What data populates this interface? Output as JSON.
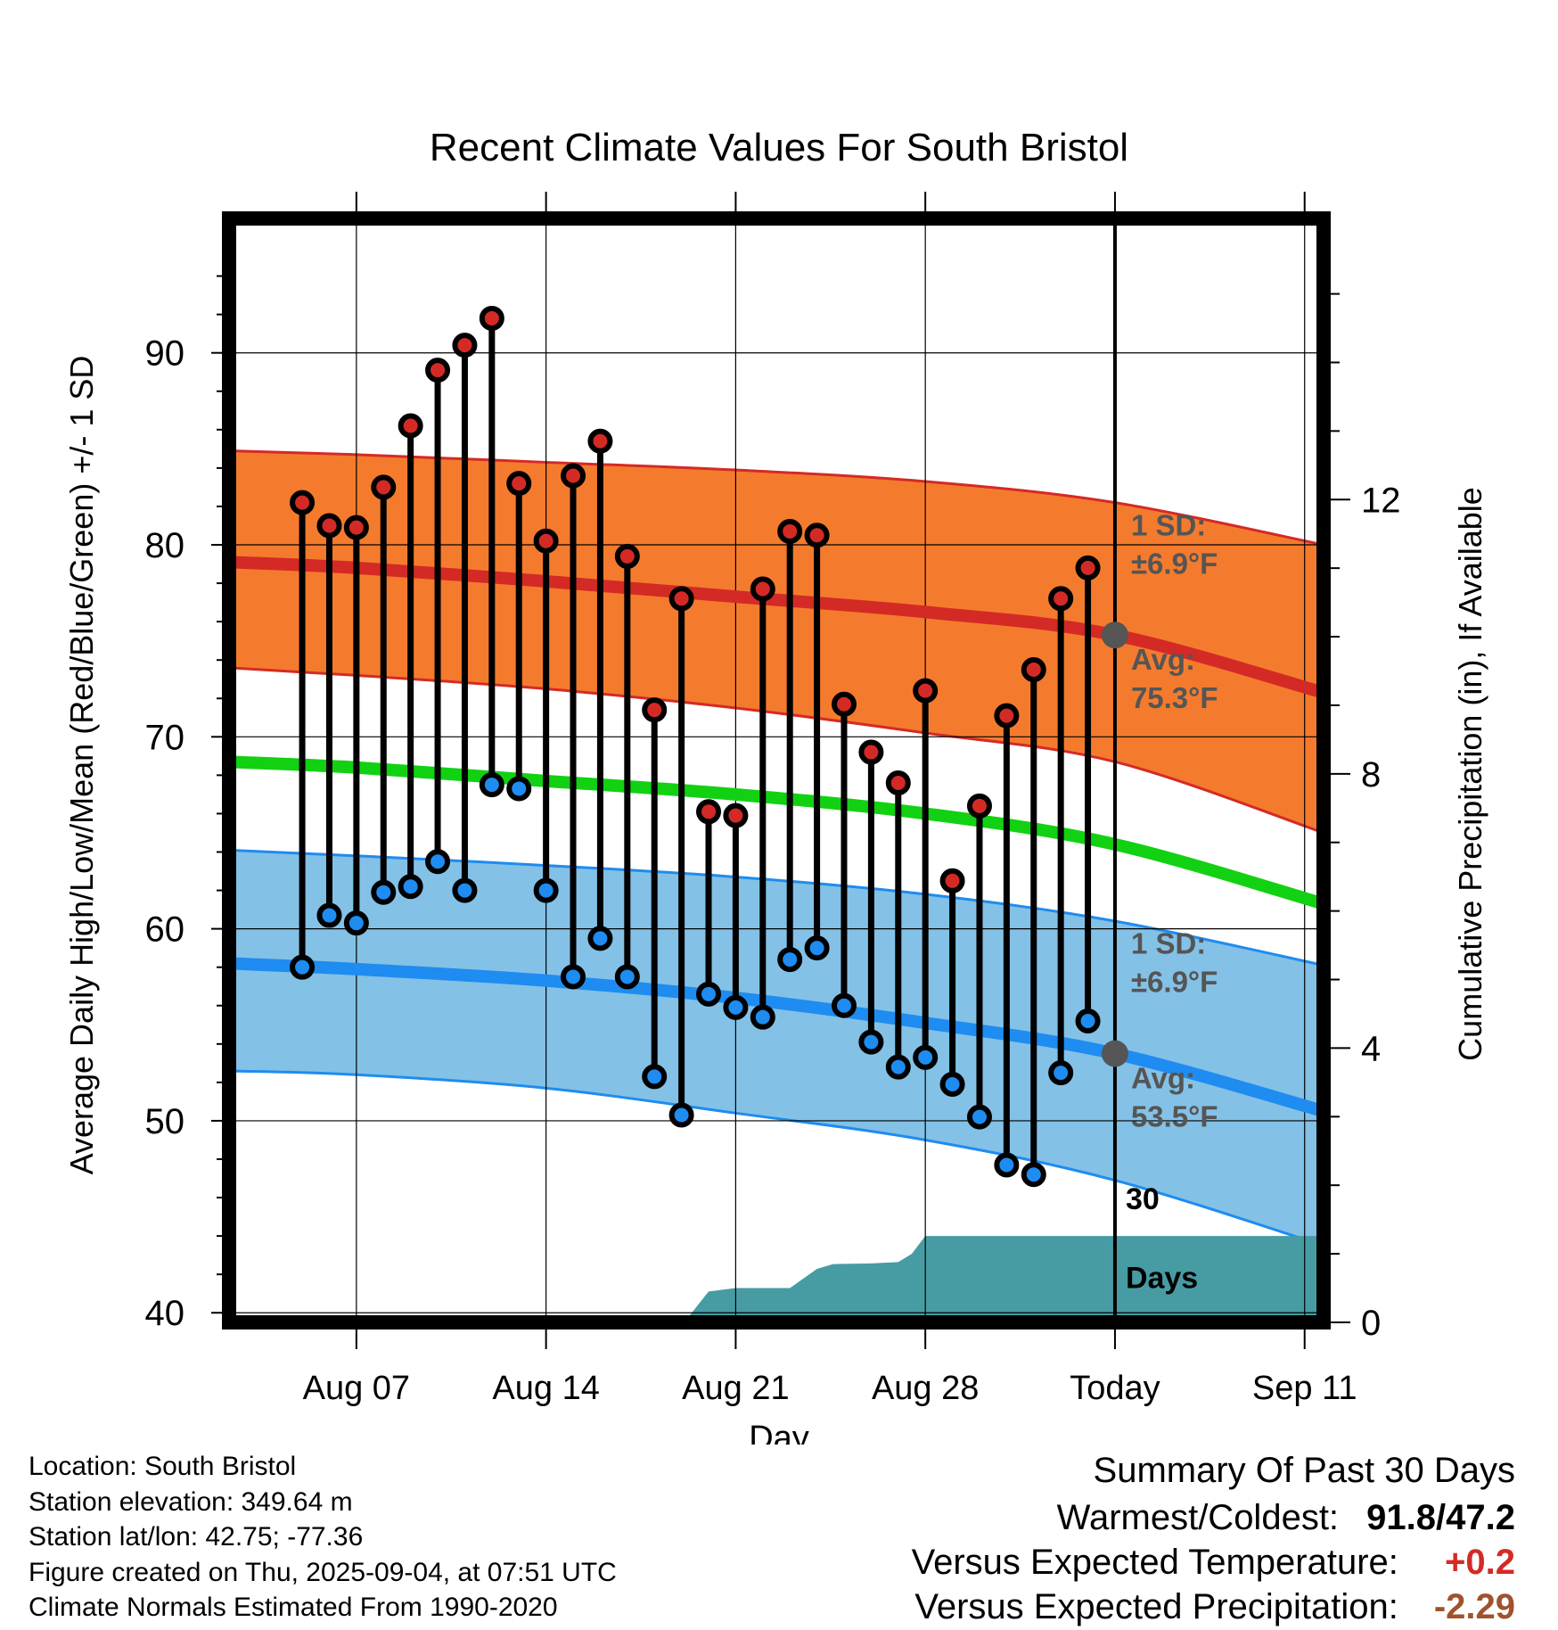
{
  "chart_data": {
    "type": "line",
    "title": "Recent Climate Values For South Bristol",
    "xlabel": "Day",
    "ylabel": "Average Daily High/Low/Mean (Red/Blue/Green) +/- 1 SD",
    "y2label": "Cumulative Precipitation (in), If Available",
    "ylim": [
      39.5,
      97
    ],
    "y2lim": [
      0,
      16.1
    ],
    "xlim": [
      -4.7,
      35.7
    ],
    "x_origin_label": "Aug 07 = day 0",
    "x_ticks": [
      {
        "day": 0,
        "label": "Aug 07"
      },
      {
        "day": 7,
        "label": "Aug 14"
      },
      {
        "day": 14,
        "label": "Aug 21"
      },
      {
        "day": 21,
        "label": "Aug 28"
      },
      {
        "day": 28,
        "label": "Today"
      },
      {
        "day": 35,
        "label": "Sep 11"
      }
    ],
    "y_ticks": [
      40,
      50,
      60,
      70,
      80,
      90
    ],
    "y2_ticks": [
      0,
      4,
      8,
      12
    ],
    "colors": {
      "high_band": "#f47b2d",
      "high_line": "#d42a26",
      "low_band": "#84c1e6",
      "low_line": "#1e8cf0",
      "mean_line": "#12d112",
      "precip": "#479ca3",
      "marker_high": "#d42a26",
      "marker_low": "#1e8cf0",
      "annotation": "#555555"
    },
    "normals": {
      "days": [
        -4.7,
        0,
        7,
        14,
        21,
        28,
        35.7
      ],
      "high_avg": [
        79.1,
        78.8,
        78.1,
        77.3,
        76.5,
        75.3,
        72.3
      ],
      "high_upper": [
        84.9,
        84.7,
        84.3,
        83.9,
        83.3,
        82.2,
        80.0
      ],
      "high_lower": [
        73.6,
        73.2,
        72.5,
        71.5,
        70.2,
        68.7,
        65.0
      ],
      "low_avg": [
        58.2,
        57.9,
        57.3,
        56.4,
        55.1,
        53.5,
        50.5
      ],
      "low_upper": [
        64.1,
        63.8,
        63.3,
        62.7,
        61.8,
        60.4,
        58.1
      ],
      "low_lower": [
        52.6,
        52.4,
        51.7,
        50.4,
        49.0,
        46.9,
        43.5
      ],
      "mean_avg": [
        68.7,
        68.4,
        67.7,
        67.0,
        66.0,
        64.4,
        61.3
      ]
    },
    "observed": {
      "days": [
        -2,
        -1,
        0,
        1,
        2,
        3,
        4,
        5,
        6,
        7,
        8,
        9,
        10,
        11,
        12,
        13,
        14,
        15,
        16,
        17,
        18,
        19,
        20,
        21,
        22,
        23,
        24,
        25,
        26,
        27
      ],
      "high": [
        82.2,
        81.0,
        80.9,
        83.0,
        86.2,
        89.1,
        90.4,
        91.8,
        83.2,
        80.2,
        83.6,
        85.4,
        79.4,
        71.4,
        77.2,
        66.1,
        65.9,
        77.7,
        80.7,
        80.5,
        71.7,
        69.2,
        67.6,
        72.4,
        62.5,
        66.4,
        71.1,
        73.5,
        77.2,
        78.8
      ],
      "low": [
        58.0,
        60.7,
        60.3,
        61.9,
        62.2,
        63.5,
        62.0,
        67.5,
        67.3,
        62.0,
        57.5,
        59.5,
        57.5,
        52.3,
        50.3,
        56.6,
        55.9,
        55.4,
        58.4,
        59.0,
        56.0,
        54.1,
        52.8,
        53.3,
        51.9,
        50.2,
        47.7,
        47.2,
        52.5,
        55.2
      ]
    },
    "precip": {
      "days": [
        12.1,
        13.0,
        14.0,
        16.0,
        17.0,
        17.6,
        19.0,
        20.0,
        20.5,
        21.0,
        35.7
      ],
      "values": [
        0.0,
        0.45,
        0.5,
        0.5,
        0.78,
        0.85,
        0.86,
        0.88,
        1.0,
        1.26,
        1.26
      ]
    },
    "today_markers": {
      "high": 75.3,
      "low": 53.5
    },
    "annotations": {
      "high_sd_1": "1 SD:",
      "high_sd_2": "±6.9°F",
      "high_avg_1": "Avg:",
      "high_avg_2": "75.3°F",
      "low_sd_1": "1 SD:",
      "low_sd_2": "±6.9°F",
      "low_avg_1": "Avg:",
      "low_avg_2": "53.5°F",
      "days_1": "30",
      "days_2": "Days"
    }
  },
  "info": {
    "location": "Location: South Bristol",
    "elevation": "Station elevation: 349.64 m",
    "latlon": "Station lat/lon: 42.75; -77.36",
    "created": "Figure created on Thu, 2025-09-04, at 07:51 UTC",
    "normals": "Climate Normals Estimated From 1990-2020"
  },
  "summary": {
    "title": "Summary Of Past 30 Days",
    "warm_cold_label": "Warmest/Coldest:",
    "warm_cold_value": "91.8/47.2",
    "temp_label": "Versus Expected Temperature:",
    "temp_value": "+0.2",
    "temp_color": "#d42a26",
    "precip_label": "Versus Expected Precipitation:",
    "precip_value": "-2.29",
    "precip_color": "#a0522d"
  }
}
